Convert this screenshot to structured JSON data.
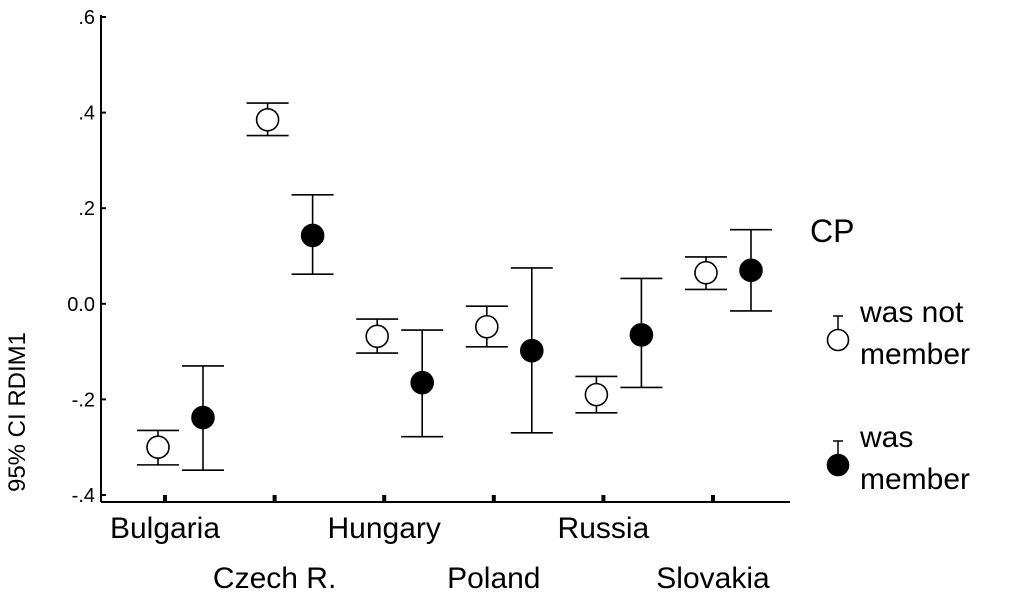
{
  "chart_data": {
    "type": "errorbar",
    "ylabel": "95% CI RDIM1",
    "ylim": [
      -0.4,
      0.6
    ],
    "yticks": [
      {
        "value": 0.6,
        "label": ".6"
      },
      {
        "value": 0.4,
        "label": ".4"
      },
      {
        "value": 0.2,
        "label": ".2"
      },
      {
        "value": 0.0,
        "label": "0.0"
      },
      {
        "value": -0.2,
        "label": "-.2"
      },
      {
        "value": -0.4,
        "label": "-.4"
      }
    ],
    "categories": [
      "Bulgaria",
      "Czech R.",
      "Hungary",
      "Poland",
      "Russia",
      "Slovakia"
    ],
    "legend": {
      "title": "CP",
      "placement": "right",
      "items": [
        {
          "series": 0,
          "lines": [
            "was not",
            "member"
          ]
        },
        {
          "series": 1,
          "lines": [
            "was",
            "member"
          ]
        }
      ]
    },
    "series": [
      {
        "name": "was not member",
        "marker": "open-circle",
        "color": "#ffffff",
        "points": [
          {
            "mean": -0.3,
            "low": -0.337,
            "high": -0.265
          },
          {
            "mean": 0.385,
            "low": 0.352,
            "high": 0.42
          },
          {
            "mean": -0.068,
            "low": -0.103,
            "high": -0.032
          },
          {
            "mean": -0.048,
            "low": -0.09,
            "high": -0.005
          },
          {
            "mean": -0.19,
            "low": -0.228,
            "high": -0.152
          },
          {
            "mean": 0.065,
            "low": 0.03,
            "high": 0.098
          }
        ]
      },
      {
        "name": "was member",
        "marker": "filled-circle",
        "color": "#000000",
        "points": [
          {
            "mean": -0.238,
            "low": -0.348,
            "high": -0.13
          },
          {
            "mean": 0.143,
            "low": 0.062,
            "high": 0.228
          },
          {
            "mean": -0.165,
            "low": -0.278,
            "high": -0.055
          },
          {
            "mean": -0.098,
            "low": -0.27,
            "high": 0.075
          },
          {
            "mean": -0.065,
            "low": -0.175,
            "high": 0.053
          },
          {
            "mean": 0.07,
            "low": -0.015,
            "high": 0.155
          }
        ]
      }
    ]
  }
}
